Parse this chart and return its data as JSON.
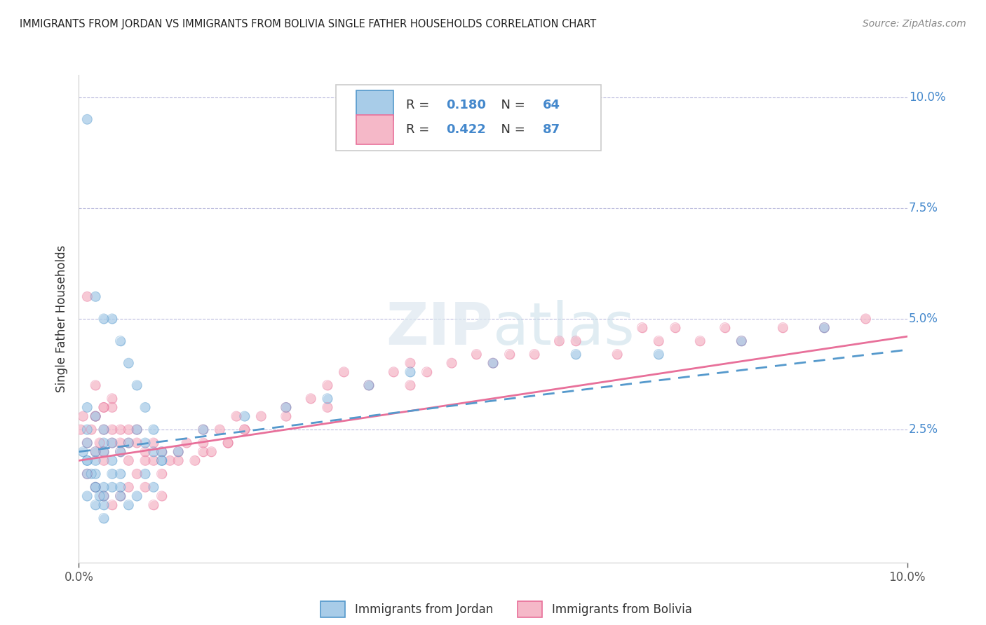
{
  "title": "IMMIGRANTS FROM JORDAN VS IMMIGRANTS FROM BOLIVIA SINGLE FATHER HOUSEHOLDS CORRELATION CHART",
  "source": "Source: ZipAtlas.com",
  "ylabel": "Single Father Households",
  "legend_label_jordan": "Immigrants from Jordan",
  "legend_label_bolivia": "Immigrants from Bolivia",
  "jordan_R": 0.18,
  "jordan_N": 64,
  "bolivia_R": 0.422,
  "bolivia_N": 87,
  "color_jordan": "#a8cce8",
  "color_bolivia": "#f5b8c8",
  "color_jordan_line": "#5599cc",
  "color_bolivia_line": "#e8709a",
  "xlim": [
    0.0,
    0.1
  ],
  "ylim": [
    -0.005,
    0.105
  ],
  "yticks": [
    0.025,
    0.05,
    0.075,
    0.1
  ],
  "ytick_labels": [
    "2.5%",
    "5.0%",
    "7.5%",
    "10.0%"
  ],
  "jordan_x": [
    0.001,
    0.002,
    0.003,
    0.004,
    0.005,
    0.006,
    0.007,
    0.008,
    0.009,
    0.01,
    0.001,
    0.002,
    0.003,
    0.004,
    0.005,
    0.006,
    0.007,
    0.008,
    0.009,
    0.01,
    0.001,
    0.002,
    0.003,
    0.004,
    0.005,
    0.001,
    0.002,
    0.003,
    0.004,
    0.005,
    0.015,
    0.02,
    0.025,
    0.03,
    0.035,
    0.04,
    0.05,
    0.06,
    0.07,
    0.08,
    0.09,
    0.001,
    0.002,
    0.003,
    0.001,
    0.002,
    0.003,
    0.001,
    0.002,
    0.003,
    0.0005,
    0.001,
    0.0015,
    0.002,
    0.0025,
    0.003,
    0.004,
    0.005,
    0.006,
    0.007,
    0.008,
    0.009,
    0.01,
    0.012
  ],
  "jordan_y": [
    0.095,
    0.055,
    0.05,
    0.05,
    0.045,
    0.04,
    0.035,
    0.03,
    0.025,
    0.02,
    0.03,
    0.028,
    0.025,
    0.022,
    0.02,
    0.022,
    0.025,
    0.022,
    0.02,
    0.018,
    0.025,
    0.02,
    0.022,
    0.018,
    0.015,
    0.022,
    0.018,
    0.02,
    0.015,
    0.012,
    0.025,
    0.028,
    0.03,
    0.032,
    0.035,
    0.038,
    0.04,
    0.042,
    0.042,
    0.045,
    0.048,
    0.01,
    0.008,
    0.005,
    0.015,
    0.012,
    0.01,
    0.018,
    0.015,
    0.012,
    0.02,
    0.018,
    0.015,
    0.012,
    0.01,
    0.008,
    0.012,
    0.01,
    0.008,
    0.01,
    0.015,
    0.012,
    0.018,
    0.02
  ],
  "bolivia_x": [
    0.0002,
    0.0005,
    0.001,
    0.0015,
    0.002,
    0.002,
    0.0025,
    0.003,
    0.003,
    0.003,
    0.004,
    0.004,
    0.005,
    0.005,
    0.006,
    0.006,
    0.007,
    0.007,
    0.008,
    0.008,
    0.009,
    0.009,
    0.01,
    0.01,
    0.011,
    0.012,
    0.013,
    0.014,
    0.015,
    0.015,
    0.016,
    0.017,
    0.018,
    0.019,
    0.02,
    0.022,
    0.025,
    0.028,
    0.03,
    0.032,
    0.035,
    0.038,
    0.04,
    0.042,
    0.045,
    0.048,
    0.05,
    0.052,
    0.055,
    0.058,
    0.06,
    0.065,
    0.068,
    0.07,
    0.072,
    0.075,
    0.078,
    0.08,
    0.085,
    0.09,
    0.095,
    0.001,
    0.002,
    0.003,
    0.004,
    0.005,
    0.006,
    0.002,
    0.003,
    0.004,
    0.001,
    0.002,
    0.003,
    0.004,
    0.005,
    0.006,
    0.007,
    0.008,
    0.009,
    0.01,
    0.012,
    0.015,
    0.018,
    0.02,
    0.025,
    0.03,
    0.04
  ],
  "bolivia_y": [
    0.025,
    0.028,
    0.022,
    0.025,
    0.02,
    0.028,
    0.022,
    0.025,
    0.02,
    0.018,
    0.03,
    0.022,
    0.025,
    0.02,
    0.022,
    0.018,
    0.025,
    0.022,
    0.02,
    0.018,
    0.022,
    0.018,
    0.02,
    0.015,
    0.018,
    0.02,
    0.022,
    0.018,
    0.025,
    0.022,
    0.02,
    0.025,
    0.022,
    0.028,
    0.025,
    0.028,
    0.03,
    0.032,
    0.035,
    0.038,
    0.035,
    0.038,
    0.04,
    0.038,
    0.04,
    0.042,
    0.04,
    0.042,
    0.042,
    0.045,
    0.045,
    0.042,
    0.048,
    0.045,
    0.048,
    0.045,
    0.048,
    0.045,
    0.048,
    0.048,
    0.05,
    0.055,
    0.028,
    0.03,
    0.025,
    0.022,
    0.025,
    0.035,
    0.03,
    0.032,
    0.015,
    0.012,
    0.01,
    0.008,
    0.01,
    0.012,
    0.015,
    0.012,
    0.008,
    0.01,
    0.018,
    0.02,
    0.022,
    0.025,
    0.028,
    0.03,
    0.035
  ]
}
